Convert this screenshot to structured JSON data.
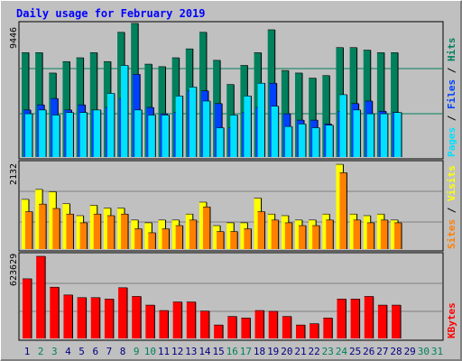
{
  "chart_data": {
    "type": "bar",
    "title": "Daily usage for February 2019",
    "colors": {
      "hits": "#00805c",
      "files": "#0040ff",
      "pages": "#00e0ff",
      "visits": "#ffff00",
      "sites": "#ff8000",
      "kbytes": "#ff0000",
      "background": "#c0c0c0",
      "title": "#0000ff",
      "weekend_label": "#00805c",
      "weekday_label": "#000080"
    },
    "days": [
      "1",
      "2",
      "3",
      "4",
      "5",
      "6",
      "7",
      "8",
      "9",
      "10",
      "11",
      "12",
      "13",
      "14",
      "15",
      "16",
      "17",
      "18",
      "19",
      "20",
      "21",
      "22",
      "23",
      "24",
      "25",
      "26",
      "27",
      "28",
      "29",
      "30",
      "31"
    ],
    "weekend_days": [
      2,
      3,
      9,
      10,
      16,
      17,
      23,
      24,
      30,
      31
    ],
    "panels": [
      {
        "id": "hits_files_pages",
        "max_label": "9446",
        "ylim": [
          0,
          9446
        ],
        "right_labels": [
          {
            "text": "Hits",
            "color": "#00805c"
          },
          {
            "text": " / ",
            "color": "#000000"
          },
          {
            "text": "Files",
            "color": "#0040ff"
          },
          {
            "text": " / ",
            "color": "#000000"
          },
          {
            "text": "Pages",
            "color": "#00e0ff"
          }
        ],
        "series": [
          {
            "name": "Hits",
            "color": "#00805c",
            "values": [
              7380,
              7380,
              5940,
              6750,
              7020,
              7380,
              6750,
              8820,
              9450,
              6570,
              6390,
              7020,
              7650,
              8820,
              6840,
              5130,
              6480,
              7380,
              9000,
              6120,
              5940,
              5580,
              5760,
              7740,
              7740,
              7560,
              7380,
              7380
            ]
          },
          {
            "name": "Files",
            "color": "#0040ff",
            "values": [
              3330,
              3690,
              4140,
              3330,
              3690,
              3330,
              3510,
              4140,
              5850,
              3510,
              3060,
              3150,
              4680,
              4680,
              3780,
              2070,
              3150,
              3510,
              5220,
              3060,
              2610,
              2610,
              2340,
              3240,
              3780,
              3960,
              3240,
              3150
            ]
          },
          {
            "name": "Pages",
            "color": "#00e0ff",
            "values": [
              3060,
              3330,
              2970,
              3150,
              3150,
              3330,
              4500,
              6480,
              3330,
              2970,
              2970,
              4320,
              4950,
              3960,
              2070,
              2970,
              4320,
              5220,
              3600,
              2160,
              2340,
              2070,
              2250,
              4410,
              3330,
              3060,
              3060,
              3150
            ]
          }
        ]
      },
      {
        "id": "visits_sites",
        "max_label": "2132",
        "ylim": [
          0,
          2132
        ],
        "right_labels": [
          {
            "text": "Visits",
            "color": "#ffff00"
          },
          {
            "text": " / ",
            "color": "#000000"
          },
          {
            "text": "Sites",
            "color": "#ff8000"
          }
        ],
        "series": [
          {
            "name": "Visits",
            "color": "#ffff00",
            "values": [
              1250,
              1500,
              1440,
              1140,
              840,
              1100,
              1030,
              1030,
              730,
              660,
              730,
              730,
              880,
              1180,
              590,
              660,
              660,
              1280,
              880,
              840,
              730,
              730,
              880,
              2130,
              880,
              840,
              880,
              730
            ]
          },
          {
            "name": "Sites",
            "color": "#ff8000",
            "values": [
              940,
              1130,
              1020,
              880,
              660,
              880,
              840,
              880,
              510,
              410,
              510,
              590,
              730,
              1060,
              440,
              440,
              510,
              940,
              730,
              660,
              590,
              590,
              730,
              1920,
              730,
              660,
              730,
              660
            ]
          }
        ]
      },
      {
        "id": "kbytes",
        "max_label": "623629",
        "ylim": [
          0,
          623629
        ],
        "right_labels": [
          {
            "text": "KBytes",
            "color": "#ff0000"
          }
        ],
        "series": [
          {
            "name": "KBytes",
            "color": "#ff0000",
            "values": [
              453000,
              623629,
              389000,
              330000,
              310000,
              310000,
              299000,
              385000,
              319000,
              253000,
              212000,
              277000,
              277000,
              208000,
              102000,
              167000,
              155000,
              212000,
              206000,
              167000,
              102000,
              112000,
              155000,
              299000,
              299000,
              319000,
              253000,
              253000
            ]
          }
        ]
      }
    ]
  }
}
